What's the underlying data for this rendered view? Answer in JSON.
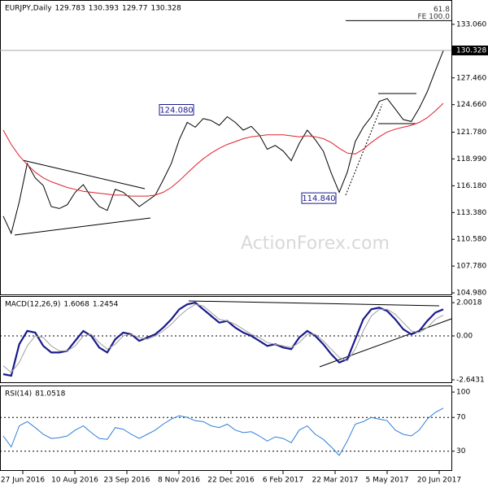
{
  "x_axis_labels": [
    "27 Jun 2016",
    "10 Aug 2016",
    "23 Sep 2016",
    "8 Nov 2016",
    "22 Dec 2016",
    "6 Feb 2017",
    "22 Mar 2017",
    "5 May 2017",
    "20 Jun 2017"
  ],
  "watermark": "ActionForex.com",
  "chart_data": [
    {
      "type": "line",
      "title": "EURJPY,Daily",
      "ohlc": [
        129.783,
        130.393,
        129.77,
        130.328
      ],
      "ylim": [
        104.73,
        135.52
      ],
      "yticks": [
        {
          "value": 133.06,
          "label": "133.060"
        },
        {
          "value": 127.46,
          "label": "127.460"
        },
        {
          "value": 124.66,
          "label": "124.660"
        },
        {
          "value": 121.78,
          "label": "121.780"
        },
        {
          "value": 118.99,
          "label": "118.990"
        },
        {
          "value": 116.18,
          "label": "116.180"
        },
        {
          "value": 113.38,
          "label": "113.380"
        },
        {
          "value": 110.58,
          "label": "110.580"
        },
        {
          "value": 107.78,
          "label": "107.780"
        },
        {
          "value": 104.98,
          "label": "104.980"
        }
      ],
      "last_price": 130.328,
      "fib_level": {
        "value": 133.45,
        "label": "61.8",
        "label2": "FE 100.0"
      },
      "annotations": [
        {
          "text": "124.080",
          "value": 124.08
        },
        {
          "text": "114.840",
          "value": 114.84
        }
      ],
      "series": [
        {
          "color": "#000000",
          "values": [
            113.0,
            111.2,
            114.5,
            118.5,
            117.0,
            116.2,
            114.0,
            113.8,
            114.2,
            115.5,
            116.3,
            115.0,
            114.0,
            113.6,
            115.8,
            115.5,
            114.8,
            114.0,
            114.6,
            115.2,
            116.8,
            118.5,
            121.0,
            122.8,
            122.3,
            123.2,
            123.0,
            122.5,
            123.4,
            122.8,
            122.0,
            122.4,
            121.5,
            120.0,
            120.4,
            119.8,
            118.8,
            120.6,
            122.0,
            121.0,
            119.8,
            117.5,
            115.5,
            117.6,
            120.8,
            122.3,
            123.4,
            125.0,
            125.3,
            124.2,
            123.1,
            122.9,
            124.3,
            126.0,
            128.2,
            130.3
          ]
        },
        {
          "color": "#e0202a",
          "values": [
            122.0,
            120.5,
            119.3,
            118.4,
            117.6,
            117.0,
            116.6,
            116.3,
            116.0,
            115.8,
            115.6,
            115.5,
            115.4,
            115.3,
            115.2,
            115.2,
            115.1,
            115.1,
            115.1,
            115.2,
            115.5,
            116.0,
            116.7,
            117.5,
            118.3,
            119.0,
            119.6,
            120.1,
            120.5,
            120.8,
            121.1,
            121.3,
            121.4,
            121.5,
            121.5,
            121.5,
            121.4,
            121.3,
            121.4,
            121.3,
            121.1,
            120.7,
            120.1,
            119.6,
            119.5,
            120.0,
            120.7,
            121.3,
            121.8,
            122.1,
            122.3,
            122.5,
            122.8,
            123.3,
            124.0,
            124.8
          ]
        }
      ]
    },
    {
      "type": "line",
      "title": "MACD(12,26,9)",
      "header_values": [
        1.6068,
        1.2454
      ],
      "ylim": [
        -2.84,
        2.35
      ],
      "yticks": [
        2.0018,
        {
          "value": 0,
          "label": "0.00"
        },
        -2.6431
      ],
      "series": [
        {
          "color": "#1a1a8c",
          "values": [
            -2.3,
            -2.4,
            -0.5,
            0.3,
            0.2,
            -0.6,
            -1.0,
            -1.0,
            -0.9,
            -0.3,
            0.3,
            0.0,
            -0.7,
            -1.0,
            -0.2,
            0.2,
            0.1,
            -0.3,
            -0.1,
            0.1,
            0.5,
            1.0,
            1.6,
            1.9,
            2.0,
            1.6,
            1.2,
            0.8,
            0.9,
            0.5,
            0.2,
            0.0,
            -0.3,
            -0.6,
            -0.5,
            -0.7,
            -0.8,
            -0.1,
            0.3,
            0.0,
            -0.5,
            -1.1,
            -1.6,
            -1.4,
            -0.2,
            1.0,
            1.6,
            1.7,
            1.5,
            1.0,
            0.4,
            0.1,
            0.3,
            0.9,
            1.4,
            1.6
          ]
        },
        {
          "color": "#a0a0a0",
          "values": [
            -1.8,
            -2.2,
            -1.6,
            -0.6,
            0.0,
            -0.1,
            -0.6,
            -0.9,
            -0.9,
            -0.6,
            0.0,
            0.1,
            -0.4,
            -0.8,
            -0.5,
            0.0,
            0.1,
            -0.1,
            -0.2,
            0.0,
            0.3,
            0.7,
            1.2,
            1.6,
            1.9,
            1.8,
            1.4,
            1.0,
            0.9,
            0.7,
            0.4,
            0.1,
            -0.1,
            -0.4,
            -0.5,
            -0.6,
            -0.7,
            -0.4,
            0.1,
            0.1,
            -0.3,
            -0.8,
            -1.3,
            -1.5,
            -0.8,
            0.3,
            1.2,
            1.6,
            1.6,
            1.3,
            0.8,
            0.3,
            0.2,
            0.5,
            1.0,
            1.25
          ]
        }
      ]
    },
    {
      "type": "line",
      "title": "RSI(14)",
      "header_values": [
        81.0518
      ],
      "ylim": [
        6.6,
        106.8
      ],
      "yticks": [
        100,
        70,
        30
      ],
      "levels": [
        70,
        30
      ],
      "series": [
        {
          "color": "#2f7fd8",
          "values": [
            48,
            35,
            60,
            65,
            58,
            50,
            45,
            46,
            48,
            55,
            60,
            52,
            45,
            44,
            58,
            56,
            50,
            45,
            50,
            55,
            62,
            68,
            72,
            70,
            66,
            65,
            60,
            58,
            62,
            55,
            52,
            53,
            48,
            42,
            47,
            45,
            40,
            55,
            60,
            50,
            44,
            35,
            25,
            42,
            62,
            65,
            70,
            68,
            66,
            55,
            50,
            48,
            55,
            68,
            76,
            81
          ]
        }
      ]
    }
  ]
}
